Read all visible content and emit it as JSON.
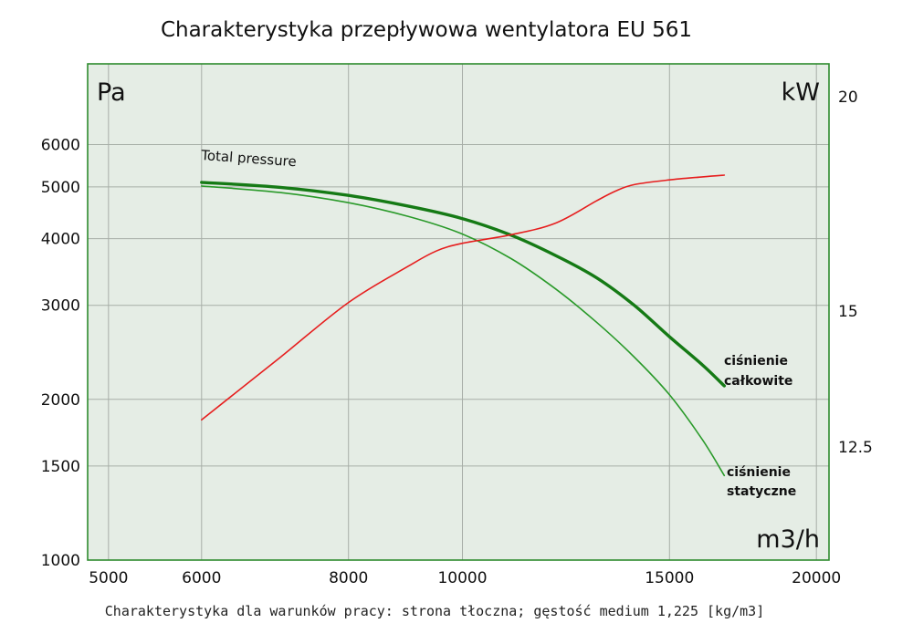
{
  "chart_data": {
    "type": "line",
    "title": "Charakterystyka przepływowa wentylatora EU 561",
    "footnote": "Charakterystyka dla warunków pracy: strona tłoczna; gęstość medium 1,225 [kg/m3]",
    "x_axis": {
      "label": "m3/h",
      "scale": "log",
      "range": [
        4800,
        20500
      ],
      "ticks": [
        5000,
        6000,
        8000,
        10000,
        15000,
        20000
      ]
    },
    "y_axis_left": {
      "label": "Pa",
      "scale": "log",
      "range": [
        1000,
        8500
      ],
      "ticks": [
        1000,
        1500,
        2000,
        3000,
        4000,
        5000,
        6000
      ]
    },
    "y_axis_right": {
      "label": "kW",
      "ticks": [
        12.5,
        15,
        20
      ]
    },
    "grid": true,
    "colors": {
      "plot_bg": "#e5ede5",
      "frame": "#2e8b2e",
      "grid": "#a7aea7",
      "total": "#157a15",
      "static": "#2a9a2a",
      "power": "#e61e1e"
    },
    "series": [
      {
        "name": "ciśnienie całkowite",
        "axis": "left",
        "x": [
          6000,
          7000,
          8000,
          9000,
          10000,
          11000,
          12000,
          13000,
          14000,
          15000,
          16000,
          16700
        ],
        "y": [
          5100,
          4990,
          4820,
          4600,
          4360,
          4060,
          3720,
          3380,
          3000,
          2620,
          2320,
          2120
        ]
      },
      {
        "name": "ciśnienie statyczne",
        "axis": "left",
        "x": [
          6000,
          7000,
          8000,
          9000,
          10000,
          11000,
          12000,
          13000,
          14000,
          15000,
          16000,
          16700
        ],
        "y": [
          5020,
          4880,
          4670,
          4400,
          4080,
          3670,
          3220,
          2790,
          2400,
          2040,
          1680,
          1440
        ]
      },
      {
        "name": "Power",
        "axis": "right",
        "x": [
          6000,
          7000,
          8000,
          9000,
          9500,
          10000,
          11000,
          12000,
          13000,
          13500,
          14000,
          15000,
          16000,
          16700
        ],
        "y": [
          13.0,
          14.15,
          15.2,
          16.05,
          16.4,
          16.58,
          16.78,
          17.05,
          17.57,
          17.8,
          17.95,
          18.06,
          18.13,
          18.17
        ]
      }
    ],
    "annotations": [
      {
        "text": "Total pressure"
      },
      {
        "text_lines": [
          "ciśnienie",
          "całkowite"
        ]
      },
      {
        "text_lines": [
          "ciśnienie",
          "statyczne"
        ]
      }
    ]
  }
}
